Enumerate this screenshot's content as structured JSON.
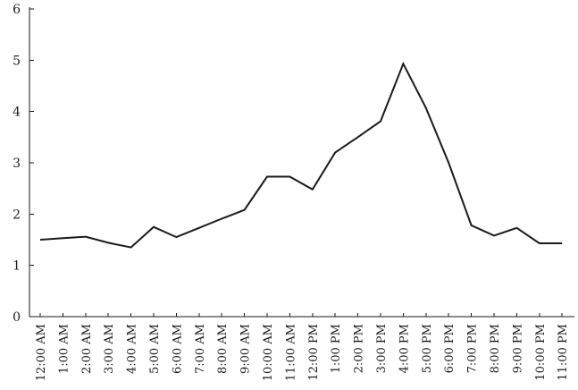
{
  "chart_data": {
    "type": "line",
    "title": "",
    "xlabel": "",
    "ylabel": "",
    "ylim": [
      0,
      6
    ],
    "yticks": [
      "0",
      "1",
      "2",
      "3",
      "4",
      "5",
      "6"
    ],
    "grid": false,
    "categories": [
      "12:00 AM",
      "1:00 AM",
      "2:00 AM",
      "3:00 AM",
      "4:00 AM",
      "5:00 AM",
      "6:00 AM",
      "7:00 AM",
      "8:00 AM",
      "9:00 AM",
      "10:00 AM",
      "11:00 AM",
      "12:00 PM",
      "1:00 PM",
      "2:00 PM",
      "3:00 PM",
      "4:00 PM",
      "5:00 PM",
      "6:00 PM",
      "7:00 PM",
      "8:00 PM",
      "9:00 PM",
      "10:00 PM",
      "11:00 PM"
    ],
    "series": [
      {
        "values": [
          1.5,
          1.53,
          1.56,
          1.44,
          1.35,
          1.75,
          1.55,
          1.73,
          1.91,
          2.08,
          2.73,
          2.73,
          2.48,
          3.2,
          3.5,
          3.81,
          4.93,
          4.07,
          3.0,
          1.78,
          1.58,
          1.73,
          1.43,
          1.43
        ],
        "color": "#1a1a1a"
      }
    ]
  }
}
